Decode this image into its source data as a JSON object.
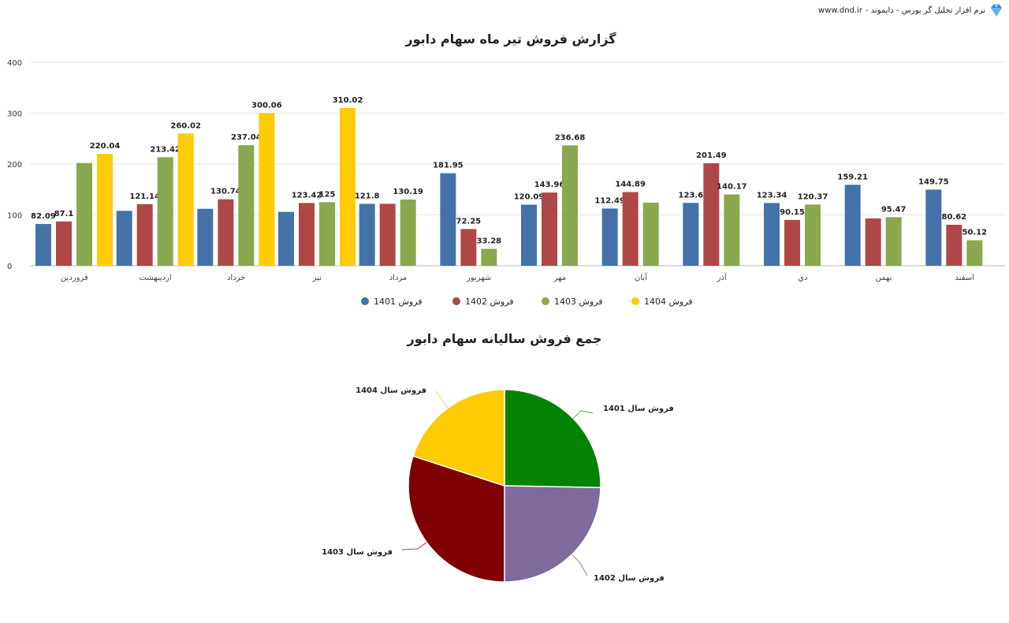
{
  "brand": {
    "text": "نرم افزار تحلیل گر بورس - دایموند -",
    "url": "www.dnd.ir",
    "logo_icon": "diamond-icon"
  },
  "chart_data": [
    {
      "type": "bar",
      "title": "گزارش فروش تیر ماه سهام دابور",
      "categories": [
        "فروردین",
        "اردیبهشت",
        "خرداد",
        "تیر",
        "مرداد",
        "شهریور",
        "مهر",
        "آبان",
        "آذر",
        "دي",
        "بهمن",
        "اسفند"
      ],
      "ylim": [
        0,
        400
      ],
      "yticks": [
        0,
        100,
        200,
        300,
        400
      ],
      "grid": true,
      "legend_position": "bottom",
      "series": [
        {
          "name": "فروش 1401",
          "color": "#4472a8",
          "values": [
            82.09,
            108,
            112,
            106,
            121.8,
            181.95,
            120.09,
            112.49,
            123.6,
            123.34,
            159.21,
            149.75
          ],
          "labels": [
            "82.09",
            "",
            "",
            "",
            "121.8",
            "181.95",
            "120.09",
            "112.49",
            "123.6",
            "123.34",
            "159.21",
            "149.75"
          ]
        },
        {
          "name": "فروش 1402",
          "color": "#b04747",
          "values": [
            87.1,
            121.14,
            130.74,
            123.42,
            121.8,
            72.25,
            143.96,
            144.89,
            201.49,
            90.15,
            93,
            80.62
          ],
          "labels": [
            "87.1",
            "121.14",
            "130.74",
            "123.42",
            "",
            "72.25",
            "143.96",
            "144.89",
            "201.49",
            "90.15",
            "",
            "80.62"
          ]
        },
        {
          "name": "فروش 1403",
          "color": "#8aa84e",
          "values": [
            202,
            213.42,
            237.04,
            125,
            130.19,
            33.28,
            236.68,
            124,
            140.17,
            120.37,
            95.47,
            50.12
          ],
          "labels": [
            "",
            "213.42",
            "237.04",
            "125",
            "130.19",
            "33.28",
            "236.68",
            "",
            "140.17",
            "120.37",
            "95.47",
            "50.12"
          ]
        },
        {
          "name": "فروش 1404",
          "color": "#fecb05",
          "values": [
            220.04,
            260.02,
            300.06,
            310.02,
            null,
            null,
            null,
            null,
            null,
            null,
            null,
            null
          ],
          "labels": [
            "220.04",
            "260.02",
            "300.06",
            "310.02",
            "",
            "",
            "",
            "",
            "",
            "",
            "",
            ""
          ]
        }
      ]
    },
    {
      "type": "pie",
      "title": "جمع فروش سالیانه سهام دابور",
      "slices": [
        {
          "name": "فروش سال 1401",
          "value": 25.3,
          "color": "#048204",
          "leader_color": "#54a854"
        },
        {
          "name": "فروش سال 1402",
          "value": 24.7,
          "color": "#7f6a9d",
          "leader_color": "#8f80aa"
        },
        {
          "name": "فروش سال 1403",
          "value": 30.0,
          "color": "#7f0000",
          "leader_color": "#a43e3e"
        },
        {
          "name": "فروش سال 1404",
          "value": 20.0,
          "color": "#fecb05",
          "leader_color": "#f3d566"
        }
      ]
    }
  ]
}
